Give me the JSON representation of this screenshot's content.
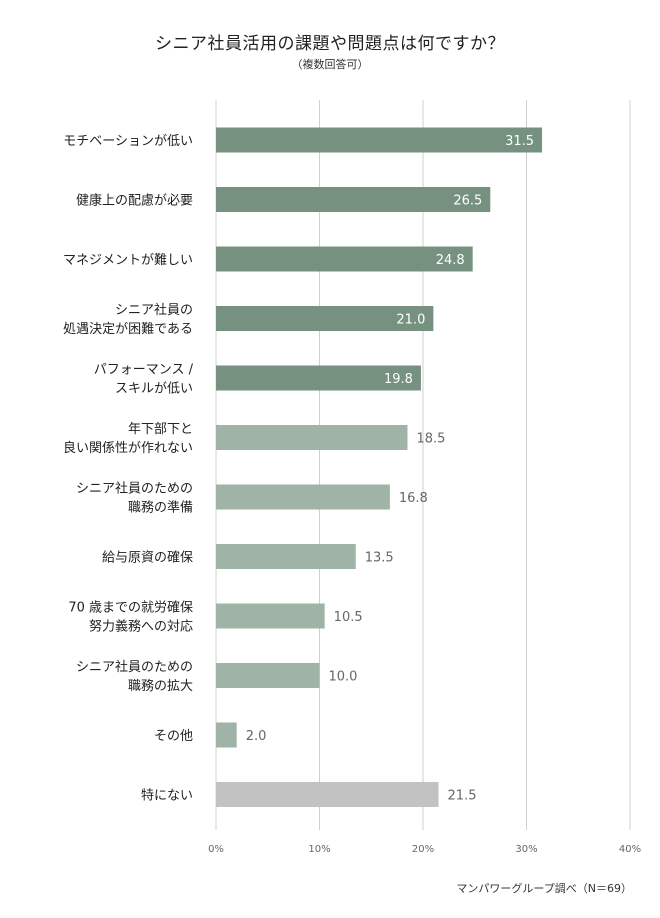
{
  "title": "シニア社員活用の課題や問題点は何ですか？",
  "subtitle": "（複数回答可）",
  "source": "マンパワーグループ調べ（N＝69）",
  "colors": {
    "dark_bar": "#76917f",
    "light_bar": "#9fb3a6",
    "gray_bar": "#c2c2c2",
    "grid": "#cfcfcf",
    "inside_label": "#ffffff",
    "outside_label": "#666666"
  },
  "chart_data": {
    "type": "bar",
    "orientation": "horizontal",
    "xlim": [
      0,
      40
    ],
    "xticks": [
      "0%",
      "10%",
      "20%",
      "30%",
      "40%"
    ],
    "grid": true,
    "categories": [
      [
        "モチベーションが低い"
      ],
      [
        "健康上の配慮が必要"
      ],
      [
        "マネジメントが難しい"
      ],
      [
        "シニア社員の",
        "処遇決定が困難である"
      ],
      [
        "パフォーマンス /",
        "スキルが低い"
      ],
      [
        "年下部下と",
        "良い関係性が作れない"
      ],
      [
        "シニア社員のための",
        "職務の準備"
      ],
      [
        "給与原資の確保"
      ],
      [
        "70 歳までの就労確保",
        "努力義務への対応"
      ],
      [
        "シニア社員のための",
        "職務の拡大"
      ],
      [
        "その他"
      ],
      [
        "特にない"
      ]
    ],
    "values": [
      31.5,
      26.5,
      24.8,
      21.0,
      19.8,
      18.5,
      16.8,
      13.5,
      10.5,
      10.0,
      2.0,
      21.5
    ],
    "value_labels": [
      "31.5",
      "26.5",
      "24.8",
      "21.0",
      "19.8",
      "18.5",
      "16.8",
      "13.5",
      "10.5",
      "10.0",
      "2.0",
      "21.5"
    ],
    "bar_tone": [
      "dark",
      "dark",
      "dark",
      "dark",
      "dark",
      "light",
      "light",
      "light",
      "light",
      "light",
      "light",
      "gray"
    ]
  }
}
